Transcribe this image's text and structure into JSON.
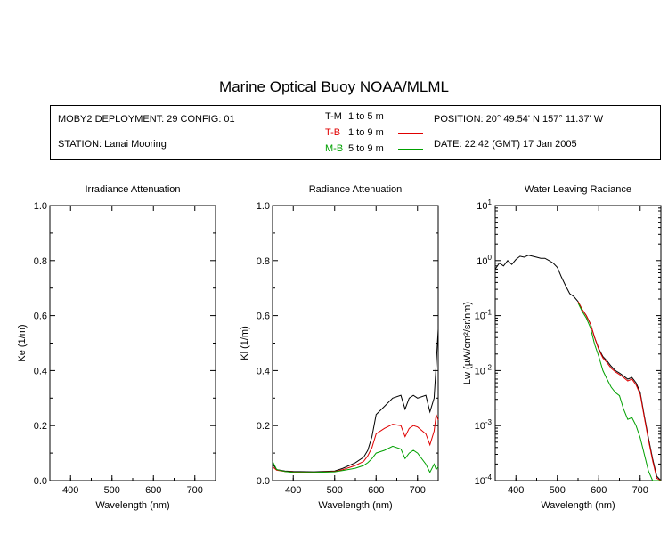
{
  "title": "Marine Optical Buoy NOAA/MLML",
  "info": {
    "deployment": "MOBY2 DEPLOYMENT: 29 CONFIG: 01",
    "station": "STATION: Lanai Mooring",
    "position": "POSITION: 20° 49.54' N   157° 11.37' W",
    "date": "DATE: 22:42 (GMT) 17 Jan 2005",
    "legend": [
      {
        "code": "T-M",
        "range": "1 to 5  m",
        "color": "#000000"
      },
      {
        "code": "T-B",
        "range": "1 to 9  m",
        "color": "#e00000"
      },
      {
        "code": "M-B",
        "range": "5 to 9  m",
        "color": "#00a000"
      }
    ]
  },
  "chart_data": [
    {
      "type": "line",
      "title": "Irradiance Attenuation",
      "xlabel": "Wavelength (nm)",
      "ylabel": "Ke  (1/m)",
      "xlim": [
        350,
        750
      ],
      "ylim": [
        0,
        1
      ],
      "xticks": [
        "400",
        "500",
        "600",
        "700"
      ],
      "yticks": [
        "0.0",
        "0.2",
        "0.4",
        "0.6",
        "0.8",
        "1.0"
      ],
      "series": []
    },
    {
      "type": "line",
      "title": "Radiance Attenuation",
      "xlabel": "Wavelength (nm)",
      "ylabel": "Kl  (1/m)",
      "xlim": [
        350,
        750
      ],
      "ylim": [
        0,
        1
      ],
      "xticks": [
        "400",
        "500",
        "600",
        "700"
      ],
      "yticks": [
        "0.0",
        "0.2",
        "0.4",
        "0.6",
        "0.8",
        "1.0"
      ],
      "series": [
        {
          "color": "#000000",
          "x": [
            350,
            360,
            380,
            400,
            450,
            500,
            520,
            550,
            570,
            580,
            590,
            600,
            620,
            640,
            660,
            670,
            680,
            690,
            700,
            720,
            730,
            740,
            745,
            750
          ],
          "y": [
            0.06,
            0.04,
            0.035,
            0.033,
            0.032,
            0.035,
            0.045,
            0.065,
            0.085,
            0.11,
            0.16,
            0.24,
            0.27,
            0.3,
            0.31,
            0.26,
            0.3,
            0.31,
            0.3,
            0.31,
            0.25,
            0.3,
            0.42,
            0.55
          ]
        },
        {
          "color": "#e00000",
          "x": [
            350,
            360,
            380,
            400,
            450,
            500,
            520,
            550,
            570,
            580,
            590,
            600,
            620,
            640,
            660,
            670,
            680,
            690,
            700,
            720,
            730,
            740,
            745,
            750
          ],
          "y": [
            0.05,
            0.038,
            0.033,
            0.031,
            0.03,
            0.033,
            0.04,
            0.055,
            0.07,
            0.09,
            0.12,
            0.17,
            0.19,
            0.205,
            0.2,
            0.16,
            0.19,
            0.2,
            0.195,
            0.17,
            0.13,
            0.18,
            0.24,
            0.22
          ]
        },
        {
          "color": "#00a000",
          "x": [
            350,
            360,
            380,
            400,
            450,
            500,
            520,
            550,
            570,
            580,
            590,
            600,
            620,
            640,
            660,
            670,
            680,
            690,
            700,
            720,
            730,
            740,
            745,
            750
          ],
          "y": [
            0.07,
            0.04,
            0.033,
            0.03,
            0.03,
            0.032,
            0.037,
            0.045,
            0.055,
            0.065,
            0.08,
            0.1,
            0.11,
            0.125,
            0.115,
            0.08,
            0.1,
            0.11,
            0.1,
            0.06,
            0.03,
            0.06,
            0.04,
            0.05
          ]
        }
      ]
    },
    {
      "type": "line",
      "title": "Water Leaving Radiance",
      "xlabel": "Wavelength (nm)",
      "ylabel": "Lw  (µW/cm²/sr/nm)",
      "xlim": [
        350,
        750
      ],
      "ylim": [
        0.0001,
        10
      ],
      "yscale": "log",
      "xticks": [
        "400",
        "500",
        "600",
        "700"
      ],
      "yticks": [
        "10^1",
        "10^0",
        "10^-1",
        "10^-2",
        "10^-3",
        "10^-4"
      ],
      "series": [
        {
          "color": "#000000",
          "x": [
            350,
            360,
            370,
            380,
            390,
            400,
            410,
            420,
            430,
            440,
            450,
            460,
            470,
            480,
            490,
            500,
            510,
            520,
            530,
            540,
            550,
            560,
            570,
            580,
            590,
            600,
            610,
            620,
            630,
            640,
            650,
            660,
            670,
            680,
            690,
            700,
            710,
            720,
            730,
            740,
            750
          ],
          "y": [
            0.7,
            0.9,
            0.8,
            1.0,
            0.85,
            1.05,
            1.2,
            1.15,
            1.25,
            1.2,
            1.15,
            1.1,
            1.1,
            1.0,
            0.9,
            0.75,
            0.5,
            0.35,
            0.25,
            0.22,
            0.18,
            0.13,
            0.1,
            0.07,
            0.04,
            0.025,
            0.018,
            0.015,
            0.012,
            0.01,
            0.009,
            0.008,
            0.007,
            0.0075,
            0.006,
            0.004,
            0.0015,
            0.0006,
            0.00025,
            0.00012,
            0.0001
          ]
        },
        {
          "color": "#e00000",
          "x": [
            550,
            560,
            570,
            580,
            590,
            600,
            610,
            620,
            630,
            640,
            650,
            660,
            670,
            680,
            690,
            700,
            710,
            720,
            730,
            740,
            750
          ],
          "y": [
            0.18,
            0.13,
            0.1,
            0.07,
            0.04,
            0.024,
            0.017,
            0.014,
            0.011,
            0.0095,
            0.0085,
            0.0075,
            0.0065,
            0.007,
            0.0055,
            0.0037,
            0.0014,
            0.00055,
            0.00023,
            0.00011,
            0.0001
          ]
        },
        {
          "color": "#00a000",
          "x": [
            550,
            560,
            570,
            580,
            590,
            600,
            610,
            620,
            630,
            640,
            650,
            660,
            670,
            680,
            690,
            700,
            710,
            720,
            730,
            740,
            750
          ],
          "y": [
            0.17,
            0.12,
            0.09,
            0.06,
            0.03,
            0.018,
            0.01,
            0.007,
            0.005,
            0.004,
            0.0035,
            0.002,
            0.0013,
            0.0014,
            0.001,
            0.0006,
            0.0003,
            0.00015,
            0.0001,
            0.0001,
            0.0001
          ]
        }
      ]
    }
  ]
}
